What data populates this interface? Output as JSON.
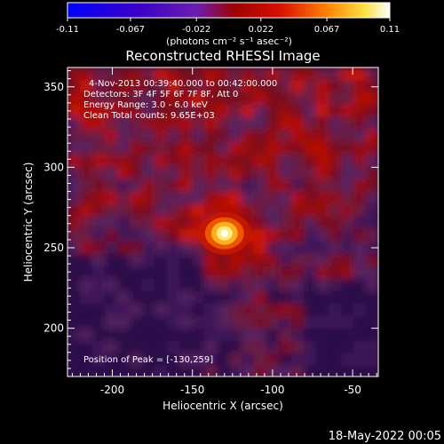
{
  "chart_data": {
    "type": "heatmap",
    "title": "Reconstructed RHESSI Image",
    "colorbar": {
      "min": -0.11,
      "max": 0.11,
      "tick_labels": [
        "-0.11",
        "-0.067",
        "-0.022",
        "0.022",
        "0.067",
        "0.11"
      ],
      "tick_values": [
        -0.11,
        -0.067,
        -0.022,
        0.022,
        0.067,
        0.11
      ],
      "unit_label": "(photons cm⁻² s⁻¹ asec⁻²)",
      "colormap": [
        "#0000ff",
        "#3a00c8",
        "#6a1fae",
        "#a00000",
        "#d81000",
        "#ff7f00",
        "#ffe040",
        "#ffffff"
      ]
    },
    "xlabel": "Heliocentric X (arcsec)",
    "ylabel": "Heliocentric Y (arcsec)",
    "xlim": [
      -228,
      -34
    ],
    "ylim": [
      170,
      362
    ],
    "x_ticks": [
      -200,
      -150,
      -100,
      -50
    ],
    "x_tick_labels": [
      "-200",
      "-150",
      "-100",
      "-50"
    ],
    "y_ticks": [
      200,
      250,
      300,
      350
    ],
    "y_tick_labels": [
      "200",
      "250",
      "300",
      "350"
    ],
    "peak": {
      "x": -130,
      "y": 259,
      "value": 0.11
    },
    "annotations": [
      "4-Nov-2013 00:39:40.000 to 00:42:00.000",
      "Detectors: 3F 4F 5F 6F 7F 8F, Att 0",
      "Energy Range: 3.0 - 6.0 keV",
      "Clean     Total counts: 9.65E+03"
    ],
    "peak_label": "Position of Peak = [-130,259]",
    "timestamp": "18-May-2022 00:05"
  }
}
